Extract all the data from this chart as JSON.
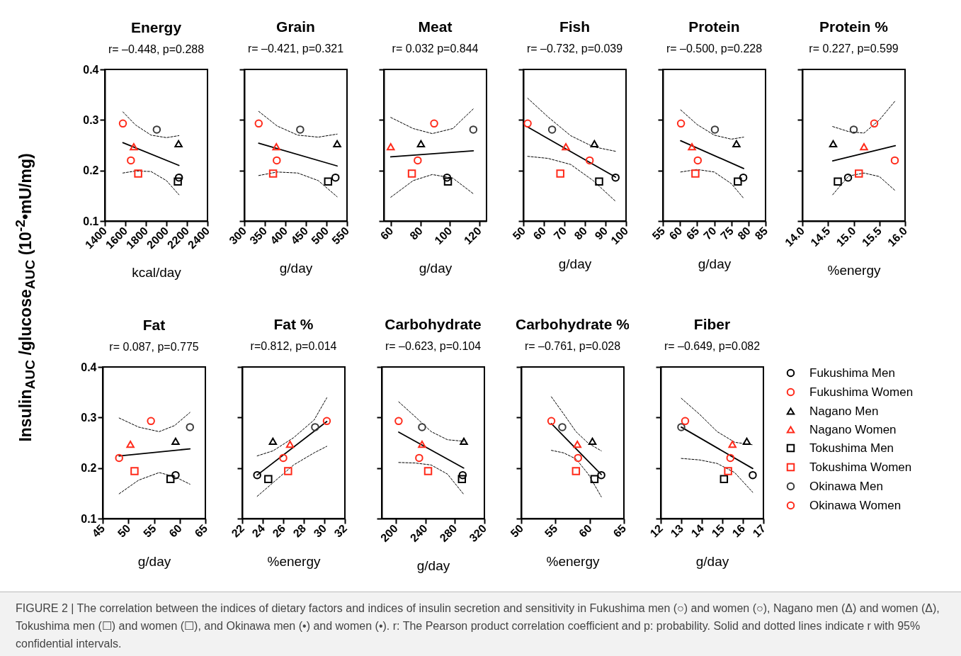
{
  "chart_data": [
    {
      "type": "scatter",
      "title": "Energy",
      "subtitle": "r= –0.448, p=0.288",
      "xlabel": "kcal/day",
      "ylabel": "Insulin$_{AUC}$ /glucose$_{AUC}$ (10$^{-2}$•mU/mg)",
      "annotations": [
        "FIGURE 2 | The correlation between the indices of dietary factors and indices of insulin secretion and sensitivity in Fukushima men (○) and women (○), Nagano men (Δ) and women (Δ), Tokushima men (☐) and women (☐), and Okinawa men (•) and women (•). r: The Pearson product correlation coefficient and p: probability. Solid and dotted lines indicate r with 95% confidential intervals."
      ],
      "xlim": [
        1400,
        2400
      ],
      "xticks": [
        1400,
        1600,
        1800,
        2000,
        2200,
        2400
      ],
      "ylim": [
        0.1,
        0.4
      ],
      "yticks": [
        0.1,
        0.2,
        0.3,
        0.4
      ],
      "series": [
        {
          "color": "#000000",
          "marker": "circle",
          "x": [
            2122
          ],
          "values": [
            0.186
          ]
        },
        {
          "color": "#ff2a1a",
          "marker": "circle",
          "x": [
            1654
          ],
          "values": [
            0.22
          ]
        },
        {
          "color": "#000000",
          "marker": "triangle",
          "x": [
            2118
          ],
          "values": [
            0.253
          ]
        },
        {
          "color": "#ff2a1a",
          "marker": "triangle",
          "x": [
            1682
          ],
          "values": [
            0.247
          ]
        },
        {
          "color": "#000000",
          "marker": "square",
          "x": [
            2111
          ],
          "values": [
            0.178
          ]
        },
        {
          "color": "#ff2a1a",
          "marker": "square",
          "x": [
            1725
          ],
          "values": [
            0.194
          ]
        },
        {
          "color": "#3a3a3a",
          "marker": "circle",
          "x": [
            1906
          ],
          "values": [
            0.281
          ]
        },
        {
          "color": "#ff2a1a",
          "marker": "circle",
          "x": [
            1576
          ],
          "values": [
            0.293
          ]
        },
        {
          "type": "line",
          "color": "#000000",
          "line_style": "solid",
          "x": [
            1576,
            2122
          ],
          "values": [
            0.255,
            0.21
          ]
        },
        {
          "type": "line",
          "color": "#000000",
          "line_style": "dashed",
          "x": [
            1576,
            1700,
            1850,
            2000,
            2122
          ],
          "values": [
            0.316,
            0.29,
            0.27,
            0.265,
            0.269
          ]
        },
        {
          "type": "line",
          "color": "#000000",
          "line_style": "dashed",
          "x": [
            1576,
            1700,
            1850,
            2000,
            2122
          ],
          "values": [
            0.195,
            0.199,
            0.198,
            0.18,
            0.152
          ]
        }
      ]
    },
    {
      "type": "scatter",
      "title": "Grain",
      "subtitle": "r= –0.421, p=0.321",
      "xlabel": "g/day",
      "tick_labels": "x",
      "xlim": [
        300,
        550
      ],
      "xticks": [
        300,
        350,
        400,
        450,
        500,
        550
      ],
      "ylim": [
        0.1,
        0.4
      ],
      "yticks": [
        0.1,
        0.2,
        0.3,
        0.4
      ],
      "series": [
        {
          "color": "#000000",
          "marker": "circle",
          "x": [
            522
          ],
          "values": [
            0.186
          ]
        },
        {
          "color": "#ff2a1a",
          "marker": "circle",
          "x": [
            379
          ],
          "values": [
            0.22
          ]
        },
        {
          "color": "#000000",
          "marker": "triangle",
          "x": [
            526
          ],
          "values": [
            0.253
          ]
        },
        {
          "color": "#ff2a1a",
          "marker": "triangle",
          "x": [
            378
          ],
          "values": [
            0.247
          ]
        },
        {
          "color": "#000000",
          "marker": "square",
          "x": [
            504
          ],
          "values": [
            0.178
          ]
        },
        {
          "color": "#ff2a1a",
          "marker": "square",
          "x": [
            370
          ],
          "values": [
            0.194
          ]
        },
        {
          "color": "#3a3a3a",
          "marker": "circle",
          "x": [
            436
          ],
          "values": [
            0.281
          ]
        },
        {
          "color": "#ff2a1a",
          "marker": "circle",
          "x": [
            335
          ],
          "values": [
            0.293
          ]
        },
        {
          "type": "line",
          "color": "#000000",
          "line_style": "solid",
          "x": [
            335,
            526
          ],
          "values": [
            0.254,
            0.209
          ]
        },
        {
          "type": "line",
          "color": "#000000",
          "line_style": "dashed",
          "x": [
            335,
            380,
            430,
            480,
            526
          ],
          "values": [
            0.317,
            0.288,
            0.27,
            0.266,
            0.272
          ]
        },
        {
          "type": "line",
          "color": "#000000",
          "line_style": "dashed",
          "x": [
            335,
            380,
            430,
            480,
            526
          ],
          "values": [
            0.19,
            0.197,
            0.195,
            0.18,
            0.148
          ]
        }
      ]
    },
    {
      "type": "scatter",
      "title": "Meat",
      "subtitle": "r= 0.032 p=0.844",
      "xlabel": "g/day",
      "tick_labels": "x",
      "xlim": [
        55,
        125
      ],
      "xticks": [
        60,
        80,
        100,
        120
      ],
      "ylim": [
        0.1,
        0.4
      ],
      "yticks": [
        0.1,
        0.2,
        0.3,
        0.4
      ],
      "series": [
        {
          "color": "#000000",
          "marker": "circle",
          "x": [
            98.1
          ],
          "values": [
            0.186
          ]
        },
        {
          "color": "#ff2a1a",
          "marker": "circle",
          "x": [
            78.1
          ],
          "values": [
            0.22
          ]
        },
        {
          "color": "#000000",
          "marker": "triangle",
          "x": [
            80.3
          ],
          "values": [
            0.253
          ]
        },
        {
          "color": "#ff2a1a",
          "marker": "triangle",
          "x": [
            59.7
          ],
          "values": [
            0.247
          ]
        },
        {
          "color": "#000000",
          "marker": "square",
          "x": [
            98.7
          ],
          "values": [
            0.178
          ]
        },
        {
          "color": "#ff2a1a",
          "marker": "square",
          "x": [
            74.1
          ],
          "values": [
            0.194
          ]
        },
        {
          "color": "#3a3a3a",
          "marker": "circle",
          "x": [
            116
          ],
          "values": [
            0.281
          ]
        },
        {
          "color": "#ff2a1a",
          "marker": "circle",
          "x": [
            89.3
          ],
          "values": [
            0.293
          ]
        },
        {
          "type": "line",
          "color": "#000000",
          "line_style": "solid",
          "x": [
            59.7,
            116
          ],
          "values": [
            0.227,
            0.239
          ]
        },
        {
          "type": "line",
          "color": "#000000",
          "line_style": "dashed",
          "x": [
            59.7,
            75,
            88,
            102,
            116
          ],
          "values": [
            0.305,
            0.283,
            0.273,
            0.283,
            0.322
          ]
        },
        {
          "type": "line",
          "color": "#000000",
          "line_style": "dashed",
          "x": [
            59.7,
            75,
            88,
            102,
            116
          ],
          "values": [
            0.147,
            0.18,
            0.192,
            0.185,
            0.154
          ]
        }
      ]
    },
    {
      "type": "scatter",
      "title": "Fish",
      "subtitle": "r= –0.732, p=0.039",
      "xlabel": "g/day",
      "tick_labels": "x",
      "xlim": [
        50,
        100
      ],
      "xticks": [
        50,
        60,
        70,
        80,
        90,
        100
      ],
      "ylim": [
        0.1,
        0.4
      ],
      "yticks": [
        0.1,
        0.2,
        0.3,
        0.4
      ],
      "series": [
        {
          "color": "#000000",
          "marker": "circle",
          "x": [
            94.9
          ],
          "values": [
            0.186
          ]
        },
        {
          "color": "#ff2a1a",
          "marker": "circle",
          "x": [
            82.3
          ],
          "values": [
            0.22
          ]
        },
        {
          "color": "#000000",
          "marker": "triangle",
          "x": [
            84.6
          ],
          "values": [
            0.253
          ]
        },
        {
          "color": "#ff2a1a",
          "marker": "triangle",
          "x": [
            70.7
          ],
          "values": [
            0.247
          ]
        },
        {
          "color": "#000000",
          "marker": "square",
          "x": [
            86.9
          ],
          "values": [
            0.178
          ]
        },
        {
          "color": "#ff2a1a",
          "marker": "square",
          "x": [
            68.0
          ],
          "values": [
            0.194
          ]
        },
        {
          "color": "#3a3a3a",
          "marker": "circle",
          "x": [
            64.0
          ],
          "values": [
            0.281
          ]
        },
        {
          "color": "#ff2a1a",
          "marker": "circle",
          "x": [
            52.1
          ],
          "values": [
            0.293
          ]
        },
        {
          "type": "line",
          "color": "#000000",
          "line_style": "solid",
          "x": [
            52.1,
            94.9
          ],
          "values": [
            0.286,
            0.187
          ]
        },
        {
          "type": "line",
          "color": "#000000",
          "line_style": "dashed",
          "x": [
            52.1,
            62,
            73,
            84,
            94.9
          ],
          "values": [
            0.343,
            0.306,
            0.269,
            0.247,
            0.238
          ]
        },
        {
          "type": "line",
          "color": "#000000",
          "line_style": "dashed",
          "x": [
            52.1,
            62,
            73,
            84,
            94.9
          ],
          "values": [
            0.228,
            0.224,
            0.212,
            0.18,
            0.139
          ]
        }
      ]
    },
    {
      "type": "scatter",
      "title": "Protein",
      "subtitle": "r= –0.500, p=0.228",
      "xlabel": "g/day",
      "tick_labels": "x",
      "xlim": [
        55,
        85
      ],
      "xticks": [
        55,
        60,
        65,
        70,
        75,
        80,
        85
      ],
      "ylim": [
        0.1,
        0.4
      ],
      "yticks": [
        0.1,
        0.2,
        0.3,
        0.4
      ],
      "series": [
        {
          "color": "#000000",
          "marker": "circle",
          "x": [
            78.5
          ],
          "values": [
            0.186
          ]
        },
        {
          "color": "#ff2a1a",
          "marker": "circle",
          "x": [
            65.2
          ],
          "values": [
            0.22
          ]
        },
        {
          "color": "#000000",
          "marker": "triangle",
          "x": [
            76.5
          ],
          "values": [
            0.253
          ]
        },
        {
          "color": "#ff2a1a",
          "marker": "triangle",
          "x": [
            63.5
          ],
          "values": [
            0.247
          ]
        },
        {
          "color": "#000000",
          "marker": "square",
          "x": [
            76.9
          ],
          "values": [
            0.178
          ]
        },
        {
          "color": "#ff2a1a",
          "marker": "square",
          "x": [
            64.5
          ],
          "values": [
            0.194
          ]
        },
        {
          "color": "#3a3a3a",
          "marker": "circle",
          "x": [
            70.2
          ],
          "values": [
            0.281
          ]
        },
        {
          "color": "#ff2a1a",
          "marker": "circle",
          "x": [
            60.3
          ],
          "values": [
            0.293
          ]
        },
        {
          "type": "line",
          "color": "#000000",
          "line_style": "solid",
          "x": [
            60.2,
            78.6
          ],
          "values": [
            0.259,
            0.204
          ]
        },
        {
          "type": "line",
          "color": "#000000",
          "line_style": "dashed",
          "x": [
            60.2,
            65,
            70,
            75,
            78.6
          ],
          "values": [
            0.32,
            0.291,
            0.27,
            0.262,
            0.266
          ]
        },
        {
          "type": "line",
          "color": "#000000",
          "line_style": "dashed",
          "x": [
            60.2,
            65,
            70,
            75,
            78.6
          ],
          "values": [
            0.197,
            0.202,
            0.197,
            0.174,
            0.145
          ]
        }
      ]
    },
    {
      "type": "scatter",
      "title": "Protein %",
      "subtitle": "r= 0.227, p=0.599",
      "xlabel": "%energy",
      "tick_labels": "x",
      "xlim": [
        14,
        16
      ],
      "xticks": [
        {
          "value": 14,
          "label": "14.0"
        },
        14.5,
        {
          "value": 15,
          "label": "15.0"
        },
        15.5,
        {
          "value": 16,
          "label": "16.0"
        }
      ],
      "ylim": [
        0.1,
        0.4
      ],
      "yticks": [
        0.1,
        0.2,
        0.3,
        0.4
      ],
      "series": [
        {
          "color": "#000000",
          "marker": "circle",
          "x": [
            14.89
          ],
          "values": [
            0.186
          ]
        },
        {
          "color": "#ff2a1a",
          "marker": "circle",
          "x": [
            15.8
          ],
          "values": [
            0.22
          ]
        },
        {
          "color": "#000000",
          "marker": "triangle",
          "x": [
            14.6
          ],
          "values": [
            0.253
          ]
        },
        {
          "color": "#ff2a1a",
          "marker": "triangle",
          "x": [
            15.2
          ],
          "values": [
            0.247
          ]
        },
        {
          "color": "#000000",
          "marker": "square",
          "x": [
            14.69
          ],
          "values": [
            0.178
          ]
        },
        {
          "color": "#ff2a1a",
          "marker": "square",
          "x": [
            15.1
          ],
          "values": [
            0.194
          ]
        },
        {
          "color": "#3a3a3a",
          "marker": "circle",
          "x": [
            15.0
          ],
          "values": [
            0.281
          ]
        },
        {
          "color": "#ff2a1a",
          "marker": "circle",
          "x": [
            15.4
          ],
          "values": [
            0.293
          ]
        },
        {
          "type": "line",
          "color": "#000000",
          "line_style": "solid",
          "x": [
            14.59,
            15.81
          ],
          "values": [
            0.219,
            0.249
          ]
        },
        {
          "type": "line",
          "color": "#000000",
          "line_style": "dashed",
          "x": [
            14.59,
            14.9,
            15.2,
            15.5,
            15.81
          ],
          "values": [
            0.287,
            0.277,
            0.274,
            0.3,
            0.338
          ]
        },
        {
          "type": "line",
          "color": "#000000",
          "line_style": "dashed",
          "x": [
            14.59,
            14.9,
            15.2,
            15.5,
            15.81
          ],
          "values": [
            0.152,
            0.189,
            0.195,
            0.188,
            0.16
          ]
        }
      ]
    },
    {
      "type": "scatter",
      "title": "Fat",
      "subtitle": "r= 0.087, p=0.775",
      "xlabel": "g/day",
      "xlim": [
        45,
        65
      ],
      "xticks": [
        45,
        50,
        55,
        60,
        65
      ],
      "ylim": [
        0.1,
        0.4
      ],
      "yticks": [
        0.1,
        0.2,
        0.3,
        0.4
      ],
      "series": [
        {
          "color": "#000000",
          "marker": "circle",
          "x": [
            59.2
          ],
          "values": [
            0.186
          ]
        },
        {
          "color": "#ff2a1a",
          "marker": "circle",
          "x": [
            48.2
          ],
          "values": [
            0.22
          ]
        },
        {
          "color": "#000000",
          "marker": "triangle",
          "x": [
            59.2
          ],
          "values": [
            0.253
          ]
        },
        {
          "color": "#ff2a1a",
          "marker": "triangle",
          "x": [
            50.4
          ],
          "values": [
            0.247
          ]
        },
        {
          "color": "#000000",
          "marker": "square",
          "x": [
            58.2
          ],
          "values": [
            0.178
          ]
        },
        {
          "color": "#ff2a1a",
          "marker": "square",
          "x": [
            51.2
          ],
          "values": [
            0.194
          ]
        },
        {
          "color": "#3a3a3a",
          "marker": "circle",
          "x": [
            62.0
          ],
          "values": [
            0.281
          ]
        },
        {
          "color": "#ff2a1a",
          "marker": "circle",
          "x": [
            54.4
          ],
          "values": [
            0.293
          ]
        },
        {
          "type": "line",
          "color": "#000000",
          "line_style": "solid",
          "x": [
            48.2,
            62
          ],
          "values": [
            0.224,
            0.238
          ]
        },
        {
          "type": "line",
          "color": "#000000",
          "line_style": "dashed",
          "x": [
            48.2,
            52,
            56,
            59,
            62
          ],
          "values": [
            0.299,
            0.281,
            0.272,
            0.284,
            0.31
          ]
        },
        {
          "type": "line",
          "color": "#000000",
          "line_style": "dashed",
          "x": [
            48.2,
            52,
            56,
            59,
            62
          ],
          "values": [
            0.149,
            0.176,
            0.191,
            0.183,
            0.168
          ]
        }
      ]
    },
    {
      "type": "scatter",
      "title": "Fat %",
      "subtitle": "r=0.812, p=0.014",
      "xlabel": "%energy",
      "tick_labels": "x",
      "xlim": [
        22,
        32
      ],
      "xticks": [
        22,
        24,
        26,
        28,
        30,
        32
      ],
      "ylim": [
        0.1,
        0.4
      ],
      "yticks": [
        0.1,
        0.2,
        0.3,
        0.4
      ],
      "series": [
        {
          "color": "#000000",
          "marker": "circle",
          "x": [
            23.46
          ],
          "values": [
            0.186
          ]
        },
        {
          "color": "#ff2a1a",
          "marker": "circle",
          "x": [
            26.0
          ],
          "values": [
            0.22
          ]
        },
        {
          "color": "#000000",
          "marker": "triangle",
          "x": [
            24.99
          ],
          "values": [
            0.253
          ]
        },
        {
          "color": "#ff2a1a",
          "marker": "triangle",
          "x": [
            26.66
          ],
          "values": [
            0.247
          ]
        },
        {
          "color": "#000000",
          "marker": "square",
          "x": [
            24.54
          ],
          "values": [
            0.178
          ]
        },
        {
          "color": "#ff2a1a",
          "marker": "square",
          "x": [
            26.47
          ],
          "values": [
            0.194
          ]
        },
        {
          "color": "#3a3a3a",
          "marker": "circle",
          "x": [
            29.1
          ],
          "values": [
            0.281
          ]
        },
        {
          "color": "#ff2a1a",
          "marker": "circle",
          "x": [
            30.24
          ],
          "values": [
            0.293
          ]
        },
        {
          "type": "line",
          "color": "#000000",
          "line_style": "solid",
          "x": [
            23.46,
            30.24
          ],
          "values": [
            0.186,
            0.292
          ]
        },
        {
          "type": "line",
          "color": "#000000",
          "line_style": "dashed",
          "x": [
            23.46,
            25,
            27,
            29,
            30.24
          ],
          "values": [
            0.224,
            0.234,
            0.26,
            0.295,
            0.339
          ]
        },
        {
          "type": "line",
          "color": "#000000",
          "line_style": "dashed",
          "x": [
            23.46,
            25,
            27,
            29,
            30.24
          ],
          "values": [
            0.144,
            0.171,
            0.206,
            0.23,
            0.243
          ]
        }
      ]
    },
    {
      "type": "scatter",
      "title": "Carbohydrate",
      "subtitle": "r= –0.623, p=0.104",
      "xlabel": "g/day",
      "tick_labels": "x",
      "xlim": [
        181,
        320
      ],
      "xticks": [
        200,
        240,
        280,
        320
      ],
      "ylim": [
        0.1,
        0.4
      ],
      "yticks": [
        0.1,
        0.2,
        0.3,
        0.4
      ],
      "series": [
        {
          "color": "#000000",
          "marker": "circle",
          "x": [
            290.6
          ],
          "values": [
            0.186
          ]
        },
        {
          "color": "#ff2a1a",
          "marker": "circle",
          "x": [
            231.7
          ],
          "values": [
            0.22
          ]
        },
        {
          "color": "#000000",
          "marker": "triangle",
          "x": [
            292.2
          ],
          "values": [
            0.253
          ]
        },
        {
          "color": "#ff2a1a",
          "marker": "triangle",
          "x": [
            235.6
          ],
          "values": [
            0.247
          ]
        },
        {
          "color": "#000000",
          "marker": "square",
          "x": [
            289.6
          ],
          "values": [
            0.178
          ]
        },
        {
          "color": "#ff2a1a",
          "marker": "square",
          "x": [
            243.8
          ],
          "values": [
            0.194
          ]
        },
        {
          "color": "#3a3a3a",
          "marker": "circle",
          "x": [
            235.6
          ],
          "values": [
            0.281
          ]
        },
        {
          "color": "#ff2a1a",
          "marker": "circle",
          "x": [
            203.9
          ],
          "values": [
            0.293
          ]
        },
        {
          "type": "line",
          "color": "#000000",
          "line_style": "solid",
          "x": [
            204,
            292
          ],
          "values": [
            0.271,
            0.2
          ]
        },
        {
          "type": "line",
          "color": "#000000",
          "line_style": "dashed",
          "x": [
            204,
            226,
            248,
            270,
            292
          ],
          "values": [
            0.331,
            0.302,
            0.272,
            0.256,
            0.253
          ]
        },
        {
          "type": "line",
          "color": "#000000",
          "line_style": "dashed",
          "x": [
            204,
            226,
            248,
            270,
            292
          ],
          "values": [
            0.211,
            0.21,
            0.206,
            0.188,
            0.148
          ]
        }
      ]
    },
    {
      "type": "scatter",
      "title": "Carbohydrate %",
      "subtitle": "r= –0.761, p=0.028",
      "xlabel": "%energy",
      "tick_labels": "x",
      "xlim": [
        50,
        65
      ],
      "xticks": [
        50,
        55,
        60,
        65
      ],
      "ylim": [
        0.1,
        0.4
      ],
      "yticks": [
        0.1,
        0.2,
        0.3,
        0.4
      ],
      "series": [
        {
          "color": "#000000",
          "marker": "circle",
          "x": [
            61.7
          ],
          "values": [
            0.186
          ]
        },
        {
          "color": "#ff2a1a",
          "marker": "circle",
          "x": [
            58.3
          ],
          "values": [
            0.22
          ]
        },
        {
          "color": "#000000",
          "marker": "triangle",
          "x": [
            60.4
          ],
          "values": [
            0.253
          ]
        },
        {
          "color": "#ff2a1a",
          "marker": "triangle",
          "x": [
            58.2
          ],
          "values": [
            0.247
          ]
        },
        {
          "color": "#000000",
          "marker": "square",
          "x": [
            60.7
          ],
          "values": [
            0.178
          ]
        },
        {
          "color": "#ff2a1a",
          "marker": "square",
          "x": [
            58.0
          ],
          "values": [
            0.194
          ]
        },
        {
          "color": "#3a3a3a",
          "marker": "circle",
          "x": [
            56.0
          ],
          "values": [
            0.281
          ]
        },
        {
          "color": "#ff2a1a",
          "marker": "circle",
          "x": [
            54.4
          ],
          "values": [
            0.293
          ]
        },
        {
          "type": "line",
          "color": "#000000",
          "line_style": "solid",
          "x": [
            54.4,
            61.7
          ],
          "values": [
            0.288,
            0.187
          ]
        },
        {
          "type": "line",
          "color": "#000000",
          "line_style": "dashed",
          "x": [
            54.4,
            56.2,
            58.0,
            59.8,
            61.7
          ],
          "values": [
            0.341,
            0.307,
            0.272,
            0.249,
            0.234
          ]
        },
        {
          "type": "line",
          "color": "#000000",
          "line_style": "dashed",
          "x": [
            54.4,
            56.2,
            58.0,
            59.8,
            61.7
          ],
          "values": [
            0.235,
            0.23,
            0.218,
            0.188,
            0.143
          ]
        }
      ]
    },
    {
      "type": "scatter",
      "title": "Fiber",
      "subtitle": "r= –0.649, p=0.082",
      "xlabel": "g/day",
      "tick_labels": "x",
      "legend": "right",
      "xlim": [
        12,
        17
      ],
      "xticks": [
        12,
        13,
        14,
        15,
        16,
        17
      ],
      "ylim": [
        0.1,
        0.4
      ],
      "yticks": [
        0.1,
        0.2,
        0.3,
        0.4
      ],
      "series": [
        {
          "name": "Fukushima Men",
          "color": "#000000",
          "marker": "circle",
          "x": [
            16.48
          ],
          "values": [
            0.186
          ]
        },
        {
          "name": "Fukushima Women",
          "color": "#ff2a1a",
          "marker": "circle",
          "x": [
            15.39
          ],
          "values": [
            0.22
          ]
        },
        {
          "name": "Nagano Men",
          "color": "#000000",
          "marker": "triangle",
          "x": [
            16.19
          ],
          "values": [
            0.253
          ]
        },
        {
          "name": "Nagano Women",
          "color": "#ff2a1a",
          "marker": "triangle",
          "x": [
            15.49
          ],
          "values": [
            0.247
          ]
        },
        {
          "name": "Tokushima Men",
          "color": "#000000",
          "marker": "square",
          "x": [
            15.08
          ],
          "values": [
            0.178
          ]
        },
        {
          "name": "Tokushima Women",
          "color": "#ff2a1a",
          "marker": "square",
          "x": [
            15.28
          ],
          "values": [
            0.194
          ]
        },
        {
          "name": "Okinawa Men",
          "color": "#3a3a3a",
          "marker": "circle",
          "x": [
            13.0
          ],
          "values": [
            0.281
          ]
        },
        {
          "name": "Okinawa Women",
          "color": "#ff2a1a",
          "marker": "circle",
          "x": [
            13.19
          ],
          "values": [
            0.293
          ]
        },
        {
          "type": "line",
          "color": "#000000",
          "line_style": "solid",
          "x": [
            13.0,
            16.48
          ],
          "values": [
            0.281,
            0.199
          ]
        },
        {
          "type": "line",
          "color": "#000000",
          "line_style": "dashed",
          "x": [
            13.0,
            13.9,
            14.75,
            15.6,
            16.48
          ],
          "values": [
            0.338,
            0.306,
            0.272,
            0.251,
            0.246
          ]
        },
        {
          "type": "line",
          "color": "#000000",
          "line_style": "dashed",
          "x": [
            13.0,
            13.9,
            14.75,
            15.6,
            16.48
          ],
          "values": [
            0.219,
            0.216,
            0.209,
            0.191,
            0.152
          ]
        }
      ]
    }
  ]
}
